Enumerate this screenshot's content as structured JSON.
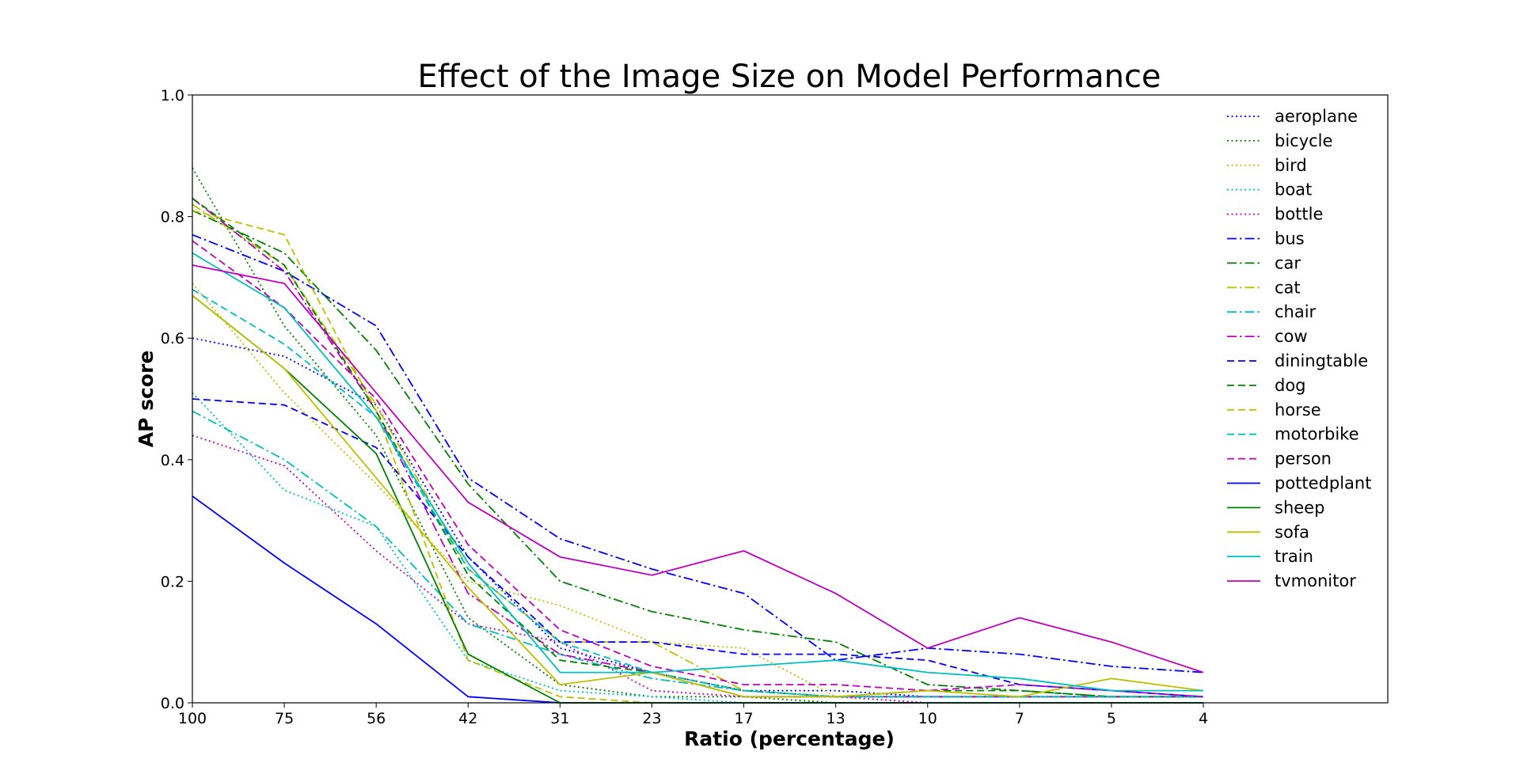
{
  "chart_data": {
    "type": "line",
    "title": "Effect of the Image Size on Model Performance",
    "xlabel": "Ratio (percentage)",
    "ylabel": "AP score",
    "categories": [
      "100",
      "75",
      "56",
      "42",
      "31",
      "23",
      "17",
      "13",
      "10",
      "7",
      "5",
      "4"
    ],
    "ylim": [
      0,
      1
    ],
    "yticks": [
      "0.0",
      "0.2",
      "0.4",
      "0.6",
      "0.8",
      "1.0"
    ],
    "grid": false,
    "legend_position": "top-right",
    "series": [
      {
        "name": "aeroplane",
        "color": "#0000ff",
        "style": "dotted",
        "values": [
          0.6,
          0.57,
          0.49,
          0.24,
          0.09,
          0.05,
          0.02,
          0.02,
          0.01,
          0.01,
          0.01,
          0.01
        ]
      },
      {
        "name": "bicycle",
        "color": "#008000",
        "style": "dotted",
        "values": [
          0.88,
          0.62,
          0.44,
          0.14,
          0.03,
          0.01,
          0.01,
          0.0,
          0.0,
          0.0,
          0.0,
          0.0
        ]
      },
      {
        "name": "bird",
        "color": "#bfbf00",
        "style": "dotted",
        "values": [
          0.69,
          0.51,
          0.36,
          0.2,
          0.16,
          0.1,
          0.09,
          0.01,
          0.01,
          0.01,
          0.01,
          0.01
        ]
      },
      {
        "name": "boat",
        "color": "#00bfbf",
        "style": "dotted",
        "values": [
          0.51,
          0.35,
          0.29,
          0.07,
          0.02,
          0.01,
          0.0,
          0.0,
          0.0,
          0.0,
          0.0,
          0.0
        ]
      },
      {
        "name": "bottle",
        "color": "#bf00bf",
        "style": "dotted",
        "values": [
          0.44,
          0.39,
          0.25,
          0.13,
          0.1,
          0.02,
          0.01,
          0.01,
          0.0,
          0.0,
          0.0,
          0.0
        ]
      },
      {
        "name": "bus",
        "color": "#0000ff",
        "style": "dashdot",
        "values": [
          0.77,
          0.71,
          0.62,
          0.37,
          0.27,
          0.22,
          0.18,
          0.07,
          0.09,
          0.08,
          0.06,
          0.05
        ]
      },
      {
        "name": "car",
        "color": "#008000",
        "style": "dashdot",
        "values": [
          0.81,
          0.74,
          0.58,
          0.36,
          0.2,
          0.15,
          0.12,
          0.1,
          0.03,
          0.02,
          0.01,
          0.01
        ]
      },
      {
        "name": "cat",
        "color": "#bfbf00",
        "style": "dashdot",
        "values": [
          0.82,
          0.72,
          0.49,
          0.22,
          0.1,
          0.1,
          0.02,
          0.01,
          0.01,
          0.01,
          0.01,
          0.01
        ]
      },
      {
        "name": "chair",
        "color": "#00bfbf",
        "style": "dashdot",
        "values": [
          0.48,
          0.4,
          0.29,
          0.13,
          0.08,
          0.04,
          0.02,
          0.01,
          0.01,
          0.01,
          0.01,
          0.01
        ]
      },
      {
        "name": "cow",
        "color": "#bf00bf",
        "style": "dashdot",
        "values": [
          0.83,
          0.71,
          0.48,
          0.18,
          0.08,
          0.05,
          0.01,
          0.01,
          0.01,
          0.01,
          0.01,
          0.01
        ]
      },
      {
        "name": "diningtable",
        "color": "#0000ff",
        "style": "dashed",
        "values": [
          0.5,
          0.49,
          0.42,
          0.24,
          0.1,
          0.1,
          0.08,
          0.08,
          0.07,
          0.03,
          0.02,
          0.01
        ]
      },
      {
        "name": "dog",
        "color": "#008000",
        "style": "dashed",
        "values": [
          0.83,
          0.72,
          0.48,
          0.21,
          0.07,
          0.05,
          0.02,
          0.01,
          0.02,
          0.02,
          0.01,
          0.01
        ]
      },
      {
        "name": "horse",
        "color": "#bfbf00",
        "style": "dashed",
        "values": [
          0.81,
          0.77,
          0.48,
          0.07,
          0.01,
          0.0,
          0.0,
          0.0,
          0.0,
          0.0,
          0.0,
          0.0
        ]
      },
      {
        "name": "motorbike",
        "color": "#00bfbf",
        "style": "dashed",
        "values": [
          0.68,
          0.59,
          0.47,
          0.22,
          0.1,
          0.05,
          0.02,
          0.01,
          0.01,
          0.01,
          0.01,
          0.01
        ]
      },
      {
        "name": "person",
        "color": "#bf00bf",
        "style": "dashed",
        "values": [
          0.76,
          0.65,
          0.5,
          0.26,
          0.12,
          0.06,
          0.03,
          0.03,
          0.02,
          0.03,
          0.02,
          0.01
        ]
      },
      {
        "name": "pottedplant",
        "color": "#0000ff",
        "style": "solid",
        "values": [
          0.34,
          0.23,
          0.13,
          0.01,
          0.0,
          0.0,
          0.0,
          0.0,
          0.0,
          0.0,
          0.0,
          0.0
        ]
      },
      {
        "name": "sheep",
        "color": "#008000",
        "style": "solid",
        "values": [
          0.67,
          0.55,
          0.41,
          0.08,
          0.0,
          0.0,
          0.0,
          0.0,
          0.0,
          0.0,
          0.0,
          0.0
        ]
      },
      {
        "name": "sofa",
        "color": "#bfbf00",
        "style": "solid",
        "values": [
          0.67,
          0.55,
          0.37,
          0.19,
          0.03,
          0.05,
          0.01,
          0.01,
          0.02,
          0.01,
          0.04,
          0.02
        ]
      },
      {
        "name": "train",
        "color": "#00bfbf",
        "style": "solid",
        "values": [
          0.74,
          0.65,
          0.47,
          0.23,
          0.05,
          0.05,
          0.06,
          0.07,
          0.05,
          0.04,
          0.02,
          0.02
        ]
      },
      {
        "name": "tvmonitor",
        "color": "#bf00bf",
        "style": "solid",
        "values": [
          0.72,
          0.69,
          0.51,
          0.33,
          0.24,
          0.21,
          0.25,
          0.18,
          0.09,
          0.14,
          0.1,
          0.05
        ]
      }
    ]
  }
}
